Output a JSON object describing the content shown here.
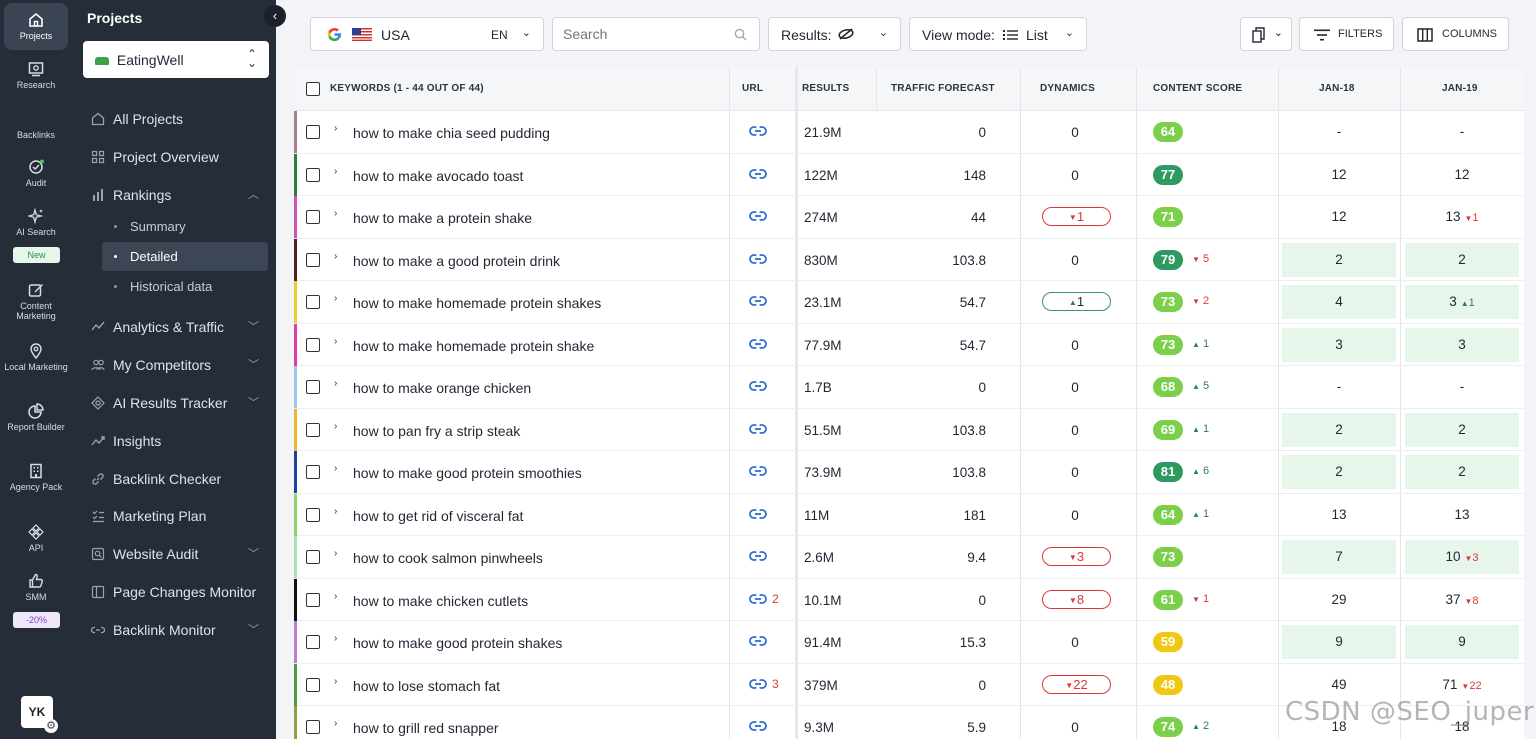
{
  "rail": {
    "items": [
      {
        "label": "Projects"
      },
      {
        "label": "Research"
      },
      {
        "label": "Backlinks"
      },
      {
        "label": "Audit"
      },
      {
        "label": "AI Search"
      },
      {
        "label": "Content Marketing"
      },
      {
        "label": "Local Marketing"
      },
      {
        "label": "Report Builder"
      },
      {
        "label": "Agency Pack"
      },
      {
        "label": "API"
      },
      {
        "label": "SMM"
      }
    ],
    "new_badge": "New",
    "discount_badge": "-20%",
    "avatar": "YK"
  },
  "panel": {
    "title": "Projects",
    "project": "EatingWell",
    "nav": [
      {
        "label": "All Projects"
      },
      {
        "label": "Project Overview"
      },
      {
        "label": "Rankings"
      },
      {
        "label": "Analytics & Traffic"
      },
      {
        "label": "My Competitors"
      },
      {
        "label": "AI Results Tracker"
      },
      {
        "label": "Insights"
      },
      {
        "label": "Backlink Checker"
      },
      {
        "label": "Marketing Plan"
      },
      {
        "label": "Website Audit"
      },
      {
        "label": "Page Changes Monitor"
      },
      {
        "label": "Backlink Monitor"
      }
    ],
    "sub": [
      {
        "label": "Summary"
      },
      {
        "label": "Detailed"
      },
      {
        "label": "Historical data"
      }
    ]
  },
  "toolbar": {
    "country": "USA",
    "lang": "EN",
    "search_placeholder": "Search",
    "results_label": "Results:",
    "view_mode_label": "View mode:",
    "view_mode_value": "List",
    "filters_label": "FILTERS",
    "columns_label": "COLUMNS"
  },
  "table": {
    "headers": {
      "keywords": "KEYWORDS (1 - 44 OUT OF 44)",
      "url": "URL",
      "results": "RESULTS",
      "traffic": "TRAFFIC FORECAST",
      "dynamics": "DYNAMICS",
      "content_score": "CONTENT SCORE",
      "jan18": "JAN-18",
      "jan19": "JAN-19"
    },
    "rows": [
      {
        "kw": "how to make chia seed pudding",
        "bar": "#a77f86",
        "url_count": "",
        "results": "21.9M",
        "traffic": "0",
        "dyn": "0",
        "dyn_dir": "",
        "score": "64",
        "score_color": "#7ccf4a",
        "sch": "",
        "sch_dir": "",
        "j18": "-",
        "j18_hl": false,
        "j19": "-",
        "j19_ch": "",
        "j19_dir": "",
        "j19_hl": false
      },
      {
        "kw": "how to make avocado toast",
        "bar": "#2d7d3a",
        "url_count": "",
        "results": "122M",
        "traffic": "148",
        "dyn": "0",
        "dyn_dir": "",
        "score": "77",
        "score_color": "#2f9a5f",
        "sch": "",
        "sch_dir": "",
        "j18": "12",
        "j18_hl": false,
        "j19": "12",
        "j19_ch": "",
        "j19_dir": "",
        "j19_hl": false
      },
      {
        "kw": "how to make a protein shake",
        "bar": "#d54fb5",
        "url_count": "",
        "results": "274M",
        "traffic": "44",
        "dyn": "1",
        "dyn_dir": "down",
        "score": "71",
        "score_color": "#7ccf4a",
        "sch": "",
        "sch_dir": "",
        "j18": "12",
        "j18_hl": false,
        "j19": "13",
        "j19_ch": "1",
        "j19_dir": "down",
        "j19_hl": false
      },
      {
        "kw": "how to make a good protein drink",
        "bar": "#5a1d1d",
        "url_count": "",
        "results": "830M",
        "traffic": "103.8",
        "dyn": "0",
        "dyn_dir": "",
        "score": "79",
        "score_color": "#2f9a5f",
        "sch": "5",
        "sch_dir": "down",
        "j18": "2",
        "j18_hl": true,
        "j19": "2",
        "j19_ch": "",
        "j19_dir": "",
        "j19_hl": true
      },
      {
        "kw": "how to make homemade protein shakes",
        "bar": "#f0cd2a",
        "url_count": "",
        "results": "23.1M",
        "traffic": "54.7",
        "dyn": "1",
        "dyn_dir": "up",
        "score": "73",
        "score_color": "#7ccf4a",
        "sch": "2",
        "sch_dir": "down",
        "j18": "4",
        "j18_hl": true,
        "j19": "3",
        "j19_ch": "1",
        "j19_dir": "up",
        "j19_hl": true
      },
      {
        "kw": "how to make homemade protein shake",
        "bar": "#e03aa5",
        "url_count": "",
        "results": "77.9M",
        "traffic": "54.7",
        "dyn": "0",
        "dyn_dir": "",
        "score": "73",
        "score_color": "#7ccf4a",
        "sch": "1",
        "sch_dir": "up",
        "j18": "3",
        "j18_hl": true,
        "j19": "3",
        "j19_ch": "",
        "j19_dir": "",
        "j19_hl": true
      },
      {
        "kw": "how to make orange chicken",
        "bar": "#9fc6e8",
        "url_count": "",
        "results": "1.7B",
        "traffic": "0",
        "dyn": "0",
        "dyn_dir": "",
        "score": "68",
        "score_color": "#7ccf4a",
        "sch": "5",
        "sch_dir": "up",
        "j18": "-",
        "j18_hl": false,
        "j19": "-",
        "j19_ch": "",
        "j19_dir": "",
        "j19_hl": false
      },
      {
        "kw": "how to pan fry a strip steak",
        "bar": "#f2b32c",
        "url_count": "",
        "results": "51.5M",
        "traffic": "103.8",
        "dyn": "0",
        "dyn_dir": "",
        "score": "69",
        "score_color": "#7ccf4a",
        "sch": "1",
        "sch_dir": "up",
        "j18": "2",
        "j18_hl": true,
        "j19": "2",
        "j19_ch": "",
        "j19_dir": "",
        "j19_hl": true
      },
      {
        "kw": "how to make good protein smoothies",
        "bar": "#1f3fa0",
        "url_count": "",
        "results": "73.9M",
        "traffic": "103.8",
        "dyn": "0",
        "dyn_dir": "",
        "score": "81",
        "score_color": "#2f9a5f",
        "sch": "6",
        "sch_dir": "up",
        "j18": "2",
        "j18_hl": true,
        "j19": "2",
        "j19_ch": "",
        "j19_dir": "",
        "j19_hl": true
      },
      {
        "kw": "how to get rid of visceral fat",
        "bar": "#8fd46a",
        "url_count": "",
        "results": "11M",
        "traffic": "181",
        "dyn": "0",
        "dyn_dir": "",
        "score": "64",
        "score_color": "#7ccf4a",
        "sch": "1",
        "sch_dir": "up",
        "j18": "13",
        "j18_hl": false,
        "j19": "13",
        "j19_ch": "",
        "j19_dir": "",
        "j19_hl": false
      },
      {
        "kw": "how to cook salmon pinwheels",
        "bar": "#a7e3b8",
        "url_count": "",
        "results": "2.6M",
        "traffic": "9.4",
        "dyn": "3",
        "dyn_dir": "down",
        "score": "73",
        "score_color": "#7ccf4a",
        "sch": "",
        "sch_dir": "",
        "j18": "7",
        "j18_hl": true,
        "j19": "10",
        "j19_ch": "3",
        "j19_dir": "down",
        "j19_hl": true
      },
      {
        "kw": "how to make chicken cutlets",
        "bar": "#111111",
        "url_count": "2",
        "results": "10.1M",
        "traffic": "0",
        "dyn": "8",
        "dyn_dir": "down",
        "score": "61",
        "score_color": "#7ccf4a",
        "sch": "1",
        "sch_dir": "down",
        "j18": "29",
        "j18_hl": false,
        "j19": "37",
        "j19_ch": "8",
        "j19_dir": "down",
        "j19_hl": false
      },
      {
        "kw": "how to make good protein shakes",
        "bar": "#b97dd6",
        "url_count": "",
        "results": "91.4M",
        "traffic": "15.3",
        "dyn": "0",
        "dyn_dir": "",
        "score": "59",
        "score_color": "#f0c814",
        "sch": "",
        "sch_dir": "",
        "j18": "9",
        "j18_hl": true,
        "j19": "9",
        "j19_ch": "",
        "j19_dir": "",
        "j19_hl": true
      },
      {
        "kw": "how to lose stomach fat",
        "bar": "#4f9a3a",
        "url_count": "3",
        "results": "379M",
        "traffic": "0",
        "dyn": "22",
        "dyn_dir": "down",
        "score": "48",
        "score_color": "#f0c814",
        "sch": "",
        "sch_dir": "",
        "j18": "49",
        "j18_hl": false,
        "j19": "71",
        "j19_ch": "22",
        "j19_dir": "down",
        "j19_hl": false
      },
      {
        "kw": "how to grill red snapper",
        "bar": "#8ca04a",
        "url_count": "",
        "results": "9.3M",
        "traffic": "5.9",
        "dyn": "0",
        "dyn_dir": "",
        "score": "74",
        "score_color": "#7ccf4a",
        "sch": "2",
        "sch_dir": "up",
        "j18": "18",
        "j18_hl": false,
        "j19": "18",
        "j19_ch": "",
        "j19_dir": "",
        "j19_hl": false
      }
    ]
  },
  "watermark": "CSDN @SEO_juper"
}
